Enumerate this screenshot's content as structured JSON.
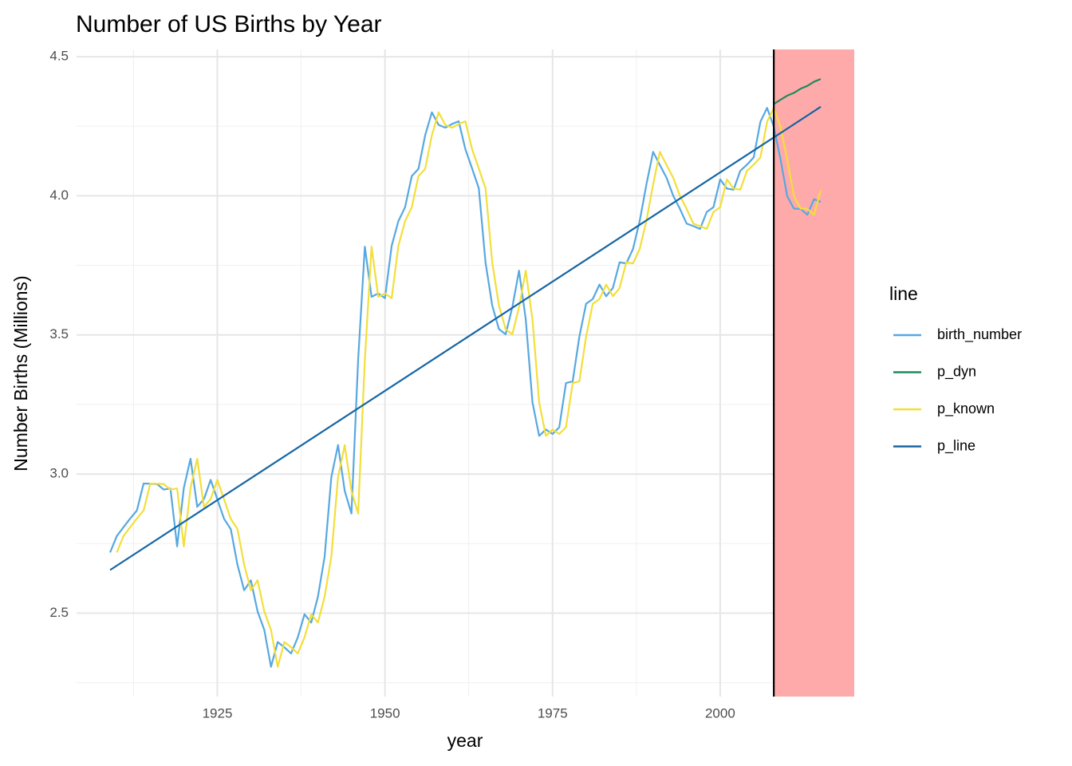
{
  "chart_data": {
    "type": "line",
    "title": "Number of US Births by Year",
    "xlabel": "year",
    "ylabel": "Number Births (Millions)",
    "legend_title": "line",
    "legend": "right",
    "grid": true,
    "xlim": [
      1904,
      2020
    ],
    "ylim": [
      2.2,
      4.526
    ],
    "xticks": [
      1925,
      1950,
      1975,
      2000
    ],
    "yticks": [
      2.5,
      {
        "value": 3,
        "label": "3.0"
      },
      3.5,
      {
        "value": 4,
        "label": "4.0"
      },
      4.5
    ],
    "vline_x": 2008,
    "vline_color": "#000000",
    "shade_xrange": [
      2008,
      2020
    ],
    "shade_color": "#ffaaaa",
    "x": [
      1909,
      1910,
      1911,
      1912,
      1913,
      1914,
      1915,
      1916,
      1917,
      1918,
      1919,
      1920,
      1921,
      1922,
      1923,
      1924,
      1925,
      1926,
      1927,
      1928,
      1929,
      1930,
      1931,
      1932,
      1933,
      1934,
      1935,
      1936,
      1937,
      1938,
      1939,
      1940,
      1941,
      1942,
      1943,
      1944,
      1945,
      1946,
      1947,
      1948,
      1949,
      1950,
      1951,
      1952,
      1953,
      1954,
      1955,
      1956,
      1957,
      1958,
      1959,
      1960,
      1961,
      1962,
      1963,
      1964,
      1965,
      1966,
      1967,
      1968,
      1969,
      1970,
      1971,
      1972,
      1973,
      1974,
      1975,
      1976,
      1977,
      1978,
      1979,
      1980,
      1981,
      1982,
      1983,
      1984,
      1985,
      1986,
      1987,
      1988,
      1989,
      1990,
      1991,
      1992,
      1993,
      1994,
      1995,
      1996,
      1997,
      1998,
      1999,
      2000,
      2001,
      2002,
      2003,
      2004,
      2005,
      2006,
      2007,
      2008,
      2009,
      2010,
      2011,
      2012,
      2013,
      2014,
      2015
    ],
    "series": [
      {
        "name": "birth_number",
        "color": "#56a8e0",
        "values": [
          2.718,
          2.777,
          2.809,
          2.84,
          2.869,
          2.966,
          2.965,
          2.964,
          2.944,
          2.948,
          2.74,
          2.95,
          3.055,
          2.882,
          2.91,
          2.979,
          2.909,
          2.839,
          2.802,
          2.674,
          2.582,
          2.618,
          2.506,
          2.44,
          2.307,
          2.396,
          2.377,
          2.355,
          2.413,
          2.496,
          2.466,
          2.559,
          2.703,
          2.989,
          3.104,
          2.939,
          2.858,
          3.411,
          3.817,
          3.637,
          3.649,
          3.632,
          3.82,
          3.909,
          3.959,
          4.071,
          4.097,
          4.218,
          4.3,
          4.255,
          4.245,
          4.258,
          4.268,
          4.167,
          4.098,
          4.027,
          3.76,
          3.606,
          3.521,
          3.502,
          3.6,
          3.731,
          3.556,
          3.258,
          3.137,
          3.16,
          3.144,
          3.168,
          3.327,
          3.333,
          3.494,
          3.612,
          3.629,
          3.681,
          3.639,
          3.669,
          3.761,
          3.757,
          3.809,
          3.91,
          4.041,
          4.158,
          4.111,
          4.065,
          4.0,
          3.953,
          3.9,
          3.891,
          3.881,
          3.942,
          3.959,
          4.059,
          4.026,
          4.022,
          4.09,
          4.112,
          4.138,
          4.266,
          4.316,
          4.248,
          4.131,
          3.999,
          3.954,
          3.953,
          3.932,
          3.988,
          3.978
        ]
      },
      {
        "name": "p_dyn",
        "color": "#1f8a5a",
        "x": [
          2008,
          2009,
          2010,
          2011,
          2012,
          2013,
          2014,
          2015
        ],
        "values": [
          4.33,
          4.345,
          4.36,
          4.37,
          4.385,
          4.395,
          4.41,
          4.42
        ]
      },
      {
        "name": "p_known",
        "color": "#f2df3a",
        "values": [
          null,
          2.718,
          2.777,
          2.809,
          2.84,
          2.869,
          2.966,
          2.965,
          2.964,
          2.944,
          2.948,
          2.74,
          2.95,
          3.055,
          2.882,
          2.91,
          2.979,
          2.909,
          2.839,
          2.802,
          2.674,
          2.582,
          2.618,
          2.506,
          2.44,
          2.307,
          2.396,
          2.377,
          2.355,
          2.413,
          2.496,
          2.466,
          2.559,
          2.703,
          2.989,
          3.104,
          2.939,
          2.858,
          3.411,
          3.817,
          3.637,
          3.649,
          3.632,
          3.82,
          3.909,
          3.959,
          4.071,
          4.097,
          4.218,
          4.3,
          4.255,
          4.245,
          4.258,
          4.268,
          4.167,
          4.098,
          4.027,
          3.76,
          3.606,
          3.521,
          3.502,
          3.6,
          3.731,
          3.556,
          3.258,
          3.137,
          3.16,
          3.144,
          3.168,
          3.327,
          3.333,
          3.494,
          3.612,
          3.629,
          3.681,
          3.639,
          3.669,
          3.761,
          3.757,
          3.809,
          3.91,
          4.041,
          4.158,
          4.111,
          4.065,
          4.0,
          3.953,
          3.9,
          3.891,
          3.881,
          3.942,
          3.959,
          4.059,
          4.026,
          4.022,
          4.09,
          4.112,
          4.138,
          4.266,
          4.316,
          4.248,
          4.131,
          3.999,
          3.954,
          3.953,
          3.932,
          4.02
        ]
      },
      {
        "name": "p_line",
        "color": "#1565a3",
        "x": [
          1909,
          2015
        ],
        "values": [
          2.655,
          4.32
        ]
      }
    ]
  }
}
